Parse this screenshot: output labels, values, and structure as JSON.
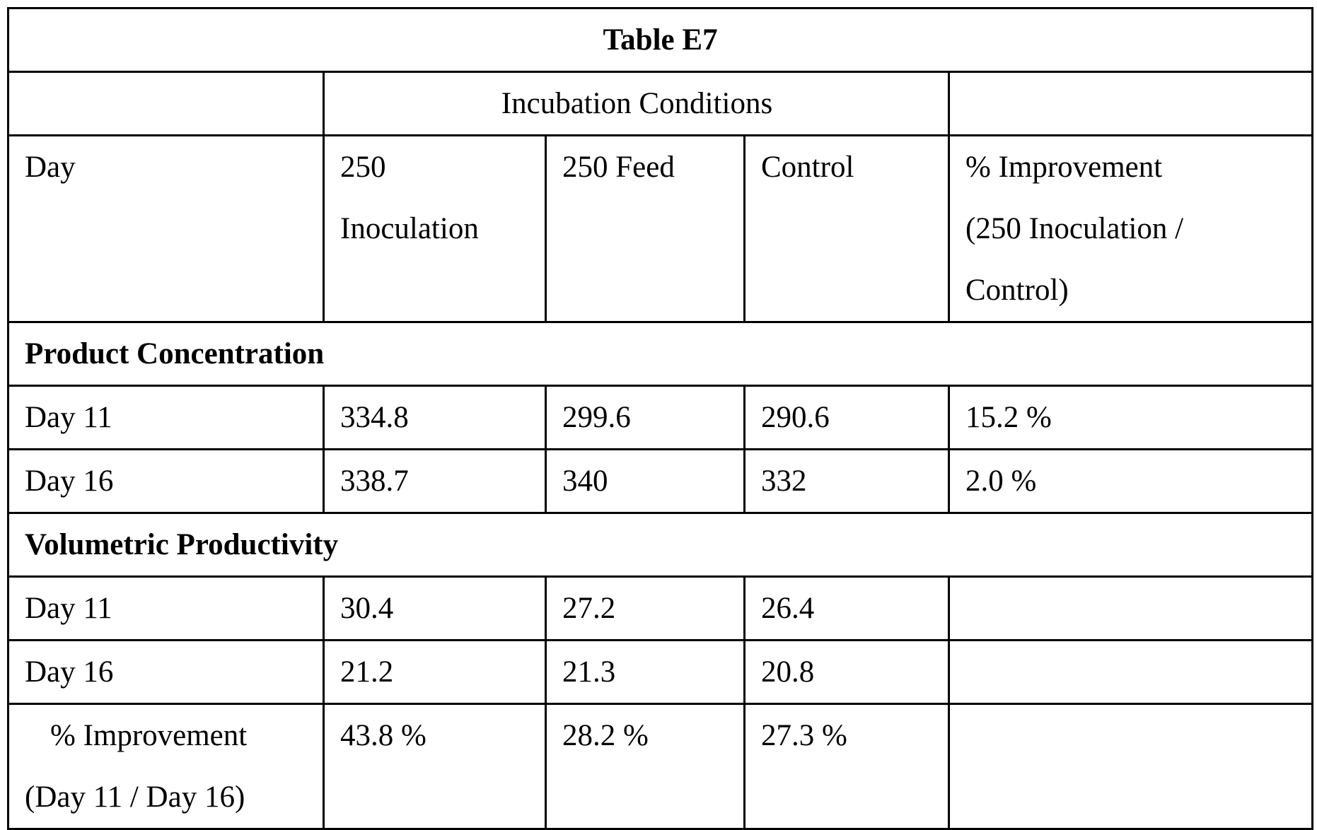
{
  "table": {
    "title": "Table E7",
    "group_header": "Incubation Conditions",
    "headers": {
      "day": "Day",
      "col1_line1": "250",
      "col1_line2": "Inoculation",
      "col2": "250 Feed",
      "col3": "Control",
      "col4_line1": "% Improvement",
      "col4_line2_a": "(250",
      "col4_line2_b": "Inoculation",
      "col4_line2_c": "/",
      "col4_line3": "Control)"
    },
    "sections": [
      {
        "label": "Product Concentration",
        "rows": [
          {
            "day": "Day 11",
            "inoculation": "334.8",
            "feed": "299.6",
            "control": "290.6",
            "improvement": "15.2 %"
          },
          {
            "day": "Day 16",
            "inoculation": "338.7",
            "feed": "340",
            "control": "332",
            "improvement": "2.0 %"
          }
        ]
      },
      {
        "label": "Volumetric Productivity",
        "rows": [
          {
            "day": "Day 11",
            "inoculation": "30.4",
            "feed": "27.2",
            "control": "26.4",
            "improvement": ""
          },
          {
            "day": "Day 16",
            "inoculation": "21.2",
            "feed": "21.3",
            "control": "20.8",
            "improvement": ""
          }
        ]
      }
    ],
    "footer_row": {
      "label_line1": "% Improvement",
      "label_line2": "(Day 11 / Day 16)",
      "inoculation": "43.8 %",
      "feed": "28.2 %",
      "control": "27.3 %",
      "improvement": ""
    }
  }
}
